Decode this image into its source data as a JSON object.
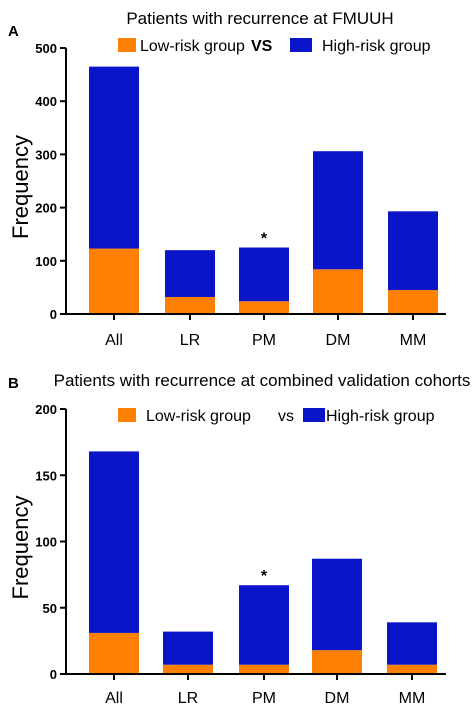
{
  "chart_data": [
    {
      "type": "bar",
      "stacked": true,
      "panel": "A",
      "title": "Patients with recurrence at FMUUH",
      "legend": {
        "low": "Low-risk group",
        "vs": "VS",
        "high": "High-risk group"
      },
      "ylabel": "Frequency",
      "ylim": [
        0,
        500
      ],
      "yticks": [
        "0",
        "100",
        "200",
        "300",
        "400",
        "500"
      ],
      "categories": [
        "All",
        "LR",
        "PM",
        "DM",
        "MM"
      ],
      "series": [
        {
          "name": "Low-risk group",
          "color": "#ff8000",
          "values": [
            123,
            32,
            24,
            84,
            45
          ]
        },
        {
          "name": "High-risk group",
          "color": "#0a14c8",
          "values": [
            342,
            88,
            101,
            222,
            148
          ]
        }
      ],
      "annotations": [
        {
          "category": "PM",
          "text": "*"
        }
      ]
    },
    {
      "type": "bar",
      "stacked": true,
      "panel": "B",
      "title": "Patients with recurrence at combined validation cohorts",
      "legend": {
        "low": "Low-risk group",
        "vs": "vs",
        "high": "High-risk group"
      },
      "ylabel": "Frequency",
      "ylim": [
        0,
        200
      ],
      "yticks": [
        "0",
        "50",
        "100",
        "150",
        "200"
      ],
      "categories": [
        "All",
        "LR",
        "PM",
        "DM",
        "MM"
      ],
      "series": [
        {
          "name": "Low-risk group",
          "color": "#ff8000",
          "values": [
            31,
            7,
            7,
            18,
            7
          ]
        },
        {
          "name": "High-risk group",
          "color": "#0a14c8",
          "values": [
            137,
            25,
            60,
            69,
            32
          ]
        }
      ],
      "annotations": [
        {
          "category": "PM",
          "text": "*"
        }
      ]
    }
  ]
}
